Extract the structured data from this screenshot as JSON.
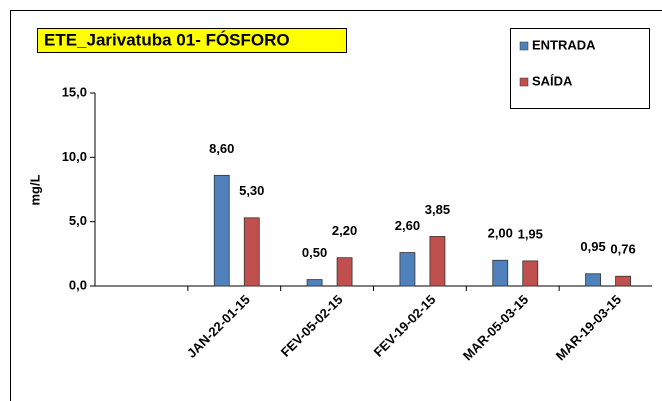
{
  "chart_data": {
    "type": "bar",
    "title": "ETE_Jarivatuba 01- FÓSFORO",
    "y_label": "mg/L",
    "categories": [
      null,
      "JAN-22-01-15",
      "FEV-05-02-15",
      "FEV-19-02-15",
      "MAR-05-03-15",
      "MAR-19-03-15"
    ],
    "series": [
      {
        "name": "ENTRADA",
        "color": "#4f81bd",
        "values": [
          null,
          8.6,
          0.5,
          2.6,
          2.0,
          0.95
        ],
        "value_labels": [
          null,
          "8,60",
          "0,50",
          "2,60",
          "2,00",
          "0,95"
        ]
      },
      {
        "name": "SAÍDA",
        "color": "#c0504d",
        "values": [
          null,
          5.3,
          2.2,
          3.85,
          1.95,
          0.76
        ],
        "value_labels": [
          null,
          "5,30",
          "2,20",
          "3,85",
          "1,95",
          "0,76"
        ]
      }
    ],
    "ylim": [
      0,
      15
    ],
    "yticks": [
      {
        "value": 0,
        "label": "0,0"
      },
      {
        "value": 5,
        "label": "5,0"
      },
      {
        "value": 10,
        "label": "10,0"
      },
      {
        "value": 15,
        "label": "15,0"
      }
    ],
    "legend": "top-right",
    "grid": false
  }
}
